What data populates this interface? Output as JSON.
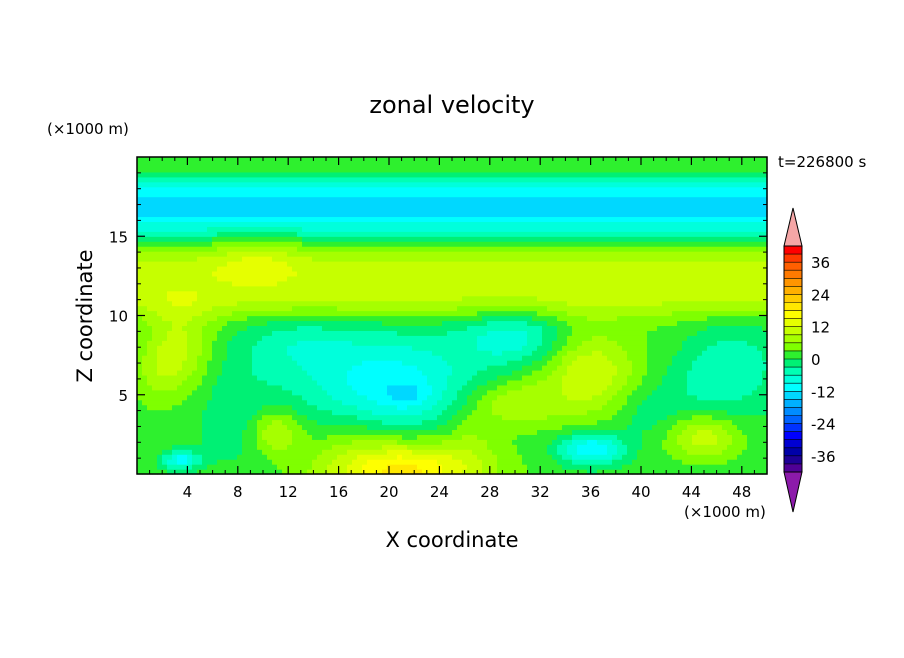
{
  "chart_data": {
    "type": "heatmap",
    "title": "zonal velocity",
    "xlabel": "X coordinate",
    "ylabel": "Z coordinate",
    "x_unit": "(×1000 m)",
    "y_unit": "(×1000 m)",
    "time_label": "t=226800 s",
    "xlim": [
      0,
      50
    ],
    "ylim": [
      0,
      20
    ],
    "x_ticks": [
      4,
      8,
      12,
      16,
      20,
      24,
      28,
      32,
      36,
      40,
      44,
      48
    ],
    "y_ticks": [
      5,
      10,
      15
    ],
    "colorbar": {
      "ticks": [
        36,
        24,
        12,
        0,
        -12,
        -24,
        -36
      ],
      "min": -42,
      "max": 42,
      "levels": [
        {
          "lo": 39,
          "hi": 42,
          "color": "#ff0000"
        },
        {
          "lo": 36,
          "hi": 39,
          "color": "#ff3a00"
        },
        {
          "lo": 33,
          "hi": 36,
          "color": "#ff5f00"
        },
        {
          "lo": 30,
          "hi": 33,
          "color": "#ff7a00"
        },
        {
          "lo": 27,
          "hi": 30,
          "color": "#ff9500"
        },
        {
          "lo": 24,
          "hi": 27,
          "color": "#ffb000"
        },
        {
          "lo": 21,
          "hi": 24,
          "color": "#ffcc00"
        },
        {
          "lo": 18,
          "hi": 21,
          "color": "#ffe800"
        },
        {
          "lo": 15,
          "hi": 18,
          "color": "#ffff00"
        },
        {
          "lo": 12,
          "hi": 15,
          "color": "#e6ff00"
        },
        {
          "lo": 9,
          "hi": 12,
          "color": "#c6ff00"
        },
        {
          "lo": 6,
          "hi": 9,
          "color": "#a6ff00"
        },
        {
          "lo": 3,
          "hi": 6,
          "color": "#7fff00"
        },
        {
          "lo": 0,
          "hi": 3,
          "color": "#2ef02e"
        },
        {
          "lo": -3,
          "hi": 0,
          "color": "#00f074"
        },
        {
          "lo": -6,
          "hi": -3,
          "color": "#00ffb4"
        },
        {
          "lo": -9,
          "hi": -6,
          "color": "#00ffdc"
        },
        {
          "lo": -12,
          "hi": -9,
          "color": "#00ffff"
        },
        {
          "lo": -15,
          "hi": -12,
          "color": "#00d8ff"
        },
        {
          "lo": -18,
          "hi": -15,
          "color": "#00b0ff"
        },
        {
          "lo": -21,
          "hi": -18,
          "color": "#008cff"
        },
        {
          "lo": -24,
          "hi": -21,
          "color": "#0064ff"
        },
        {
          "lo": -27,
          "hi": -24,
          "color": "#0032ff"
        },
        {
          "lo": -30,
          "hi": -27,
          "color": "#0000ff"
        },
        {
          "lo": -33,
          "hi": -30,
          "color": "#0000d2"
        },
        {
          "lo": -36,
          "hi": -33,
          "color": "#0000a8"
        },
        {
          "lo": -39,
          "hi": -36,
          "color": "#1e0096"
        },
        {
          "lo": -42,
          "hi": -39,
          "color": "#500096"
        }
      ],
      "over_color": "#f5a6a6",
      "under_color": "#8c1aaa"
    },
    "field": {
      "background": 1.5,
      "bands": [
        {
          "z": 19.6,
          "width": 0.7,
          "amp": 2.0
        },
        {
          "z": 17.6,
          "width": 0.9,
          "amp": -6.0
        },
        {
          "z": 16.3,
          "width": 1.3,
          "amp": -12.0
        },
        {
          "z": 12.8,
          "width": 1.6,
          "amp": 9.0
        },
        {
          "z": 10.8,
          "width": 0.8,
          "amp": 4.0
        },
        {
          "z": 7.5,
          "width": 2.5,
          "amp": -2.0
        }
      ],
      "blobs": [
        {
          "x": 9.5,
          "z": 13.5,
          "sx": 2.6,
          "sz": 1.2,
          "amp": 4.5
        },
        {
          "x": 3.5,
          "z": 8.0,
          "sx": 2.0,
          "sz": 2.0,
          "amp": 9.0
        },
        {
          "x": 1.5,
          "z": 6.5,
          "sx": 1.6,
          "sz": 1.6,
          "amp": 5.0
        },
        {
          "x": 11.0,
          "z": 2.7,
          "sx": 1.4,
          "sz": 1.0,
          "amp": 9.0
        },
        {
          "x": 8.0,
          "z": 3.5,
          "sx": 2.5,
          "sz": 2.5,
          "amp": -3.0
        },
        {
          "x": 20.0,
          "z": 5.5,
          "sx": 4.5,
          "sz": 2.2,
          "amp": -11.0
        },
        {
          "x": 21.5,
          "z": 5.0,
          "sx": 1.1,
          "sz": 0.5,
          "amp": -4.0
        },
        {
          "x": 21.0,
          "z": 0.3,
          "sx": 4.5,
          "sz": 1.3,
          "amp": 18.0
        },
        {
          "x": 17.0,
          "z": 2.8,
          "sx": 2.0,
          "sz": 1.0,
          "amp": 3.0
        },
        {
          "x": 36.0,
          "z": 6.5,
          "sx": 2.8,
          "sz": 2.0,
          "amp": 12.0
        },
        {
          "x": 30.0,
          "z": 4.5,
          "sx": 2.5,
          "sz": 1.1,
          "amp": 8.0
        },
        {
          "x": 30.0,
          "z": 8.7,
          "sx": 3.0,
          "sz": 1.2,
          "amp": -8.0
        },
        {
          "x": 36.0,
          "z": 1.6,
          "sx": 1.8,
          "sz": 0.7,
          "amp": -14.0
        },
        {
          "x": 3.5,
          "z": 0.9,
          "sx": 1.0,
          "sz": 0.4,
          "amp": -12.0
        },
        {
          "x": 45.0,
          "z": 2.4,
          "sx": 2.0,
          "sz": 1.0,
          "amp": 10.0
        },
        {
          "x": 46.0,
          "z": 6.5,
          "sx": 3.0,
          "sz": 2.2,
          "amp": -6.0
        },
        {
          "x": 13.0,
          "z": 8.2,
          "sx": 3.0,
          "sz": 1.4,
          "amp": -4.5
        },
        {
          "x": 43.0,
          "z": 8.0,
          "sx": 2.5,
          "sz": 1.5,
          "amp": 3.0
        },
        {
          "x": 26.5,
          "z": 2.5,
          "sx": 1.5,
          "sz": 1.5,
          "amp": 3.5
        },
        {
          "x": 40.0,
          "z": 3.8,
          "sx": 2.0,
          "sz": 1.2,
          "amp": -3.0
        }
      ]
    }
  }
}
